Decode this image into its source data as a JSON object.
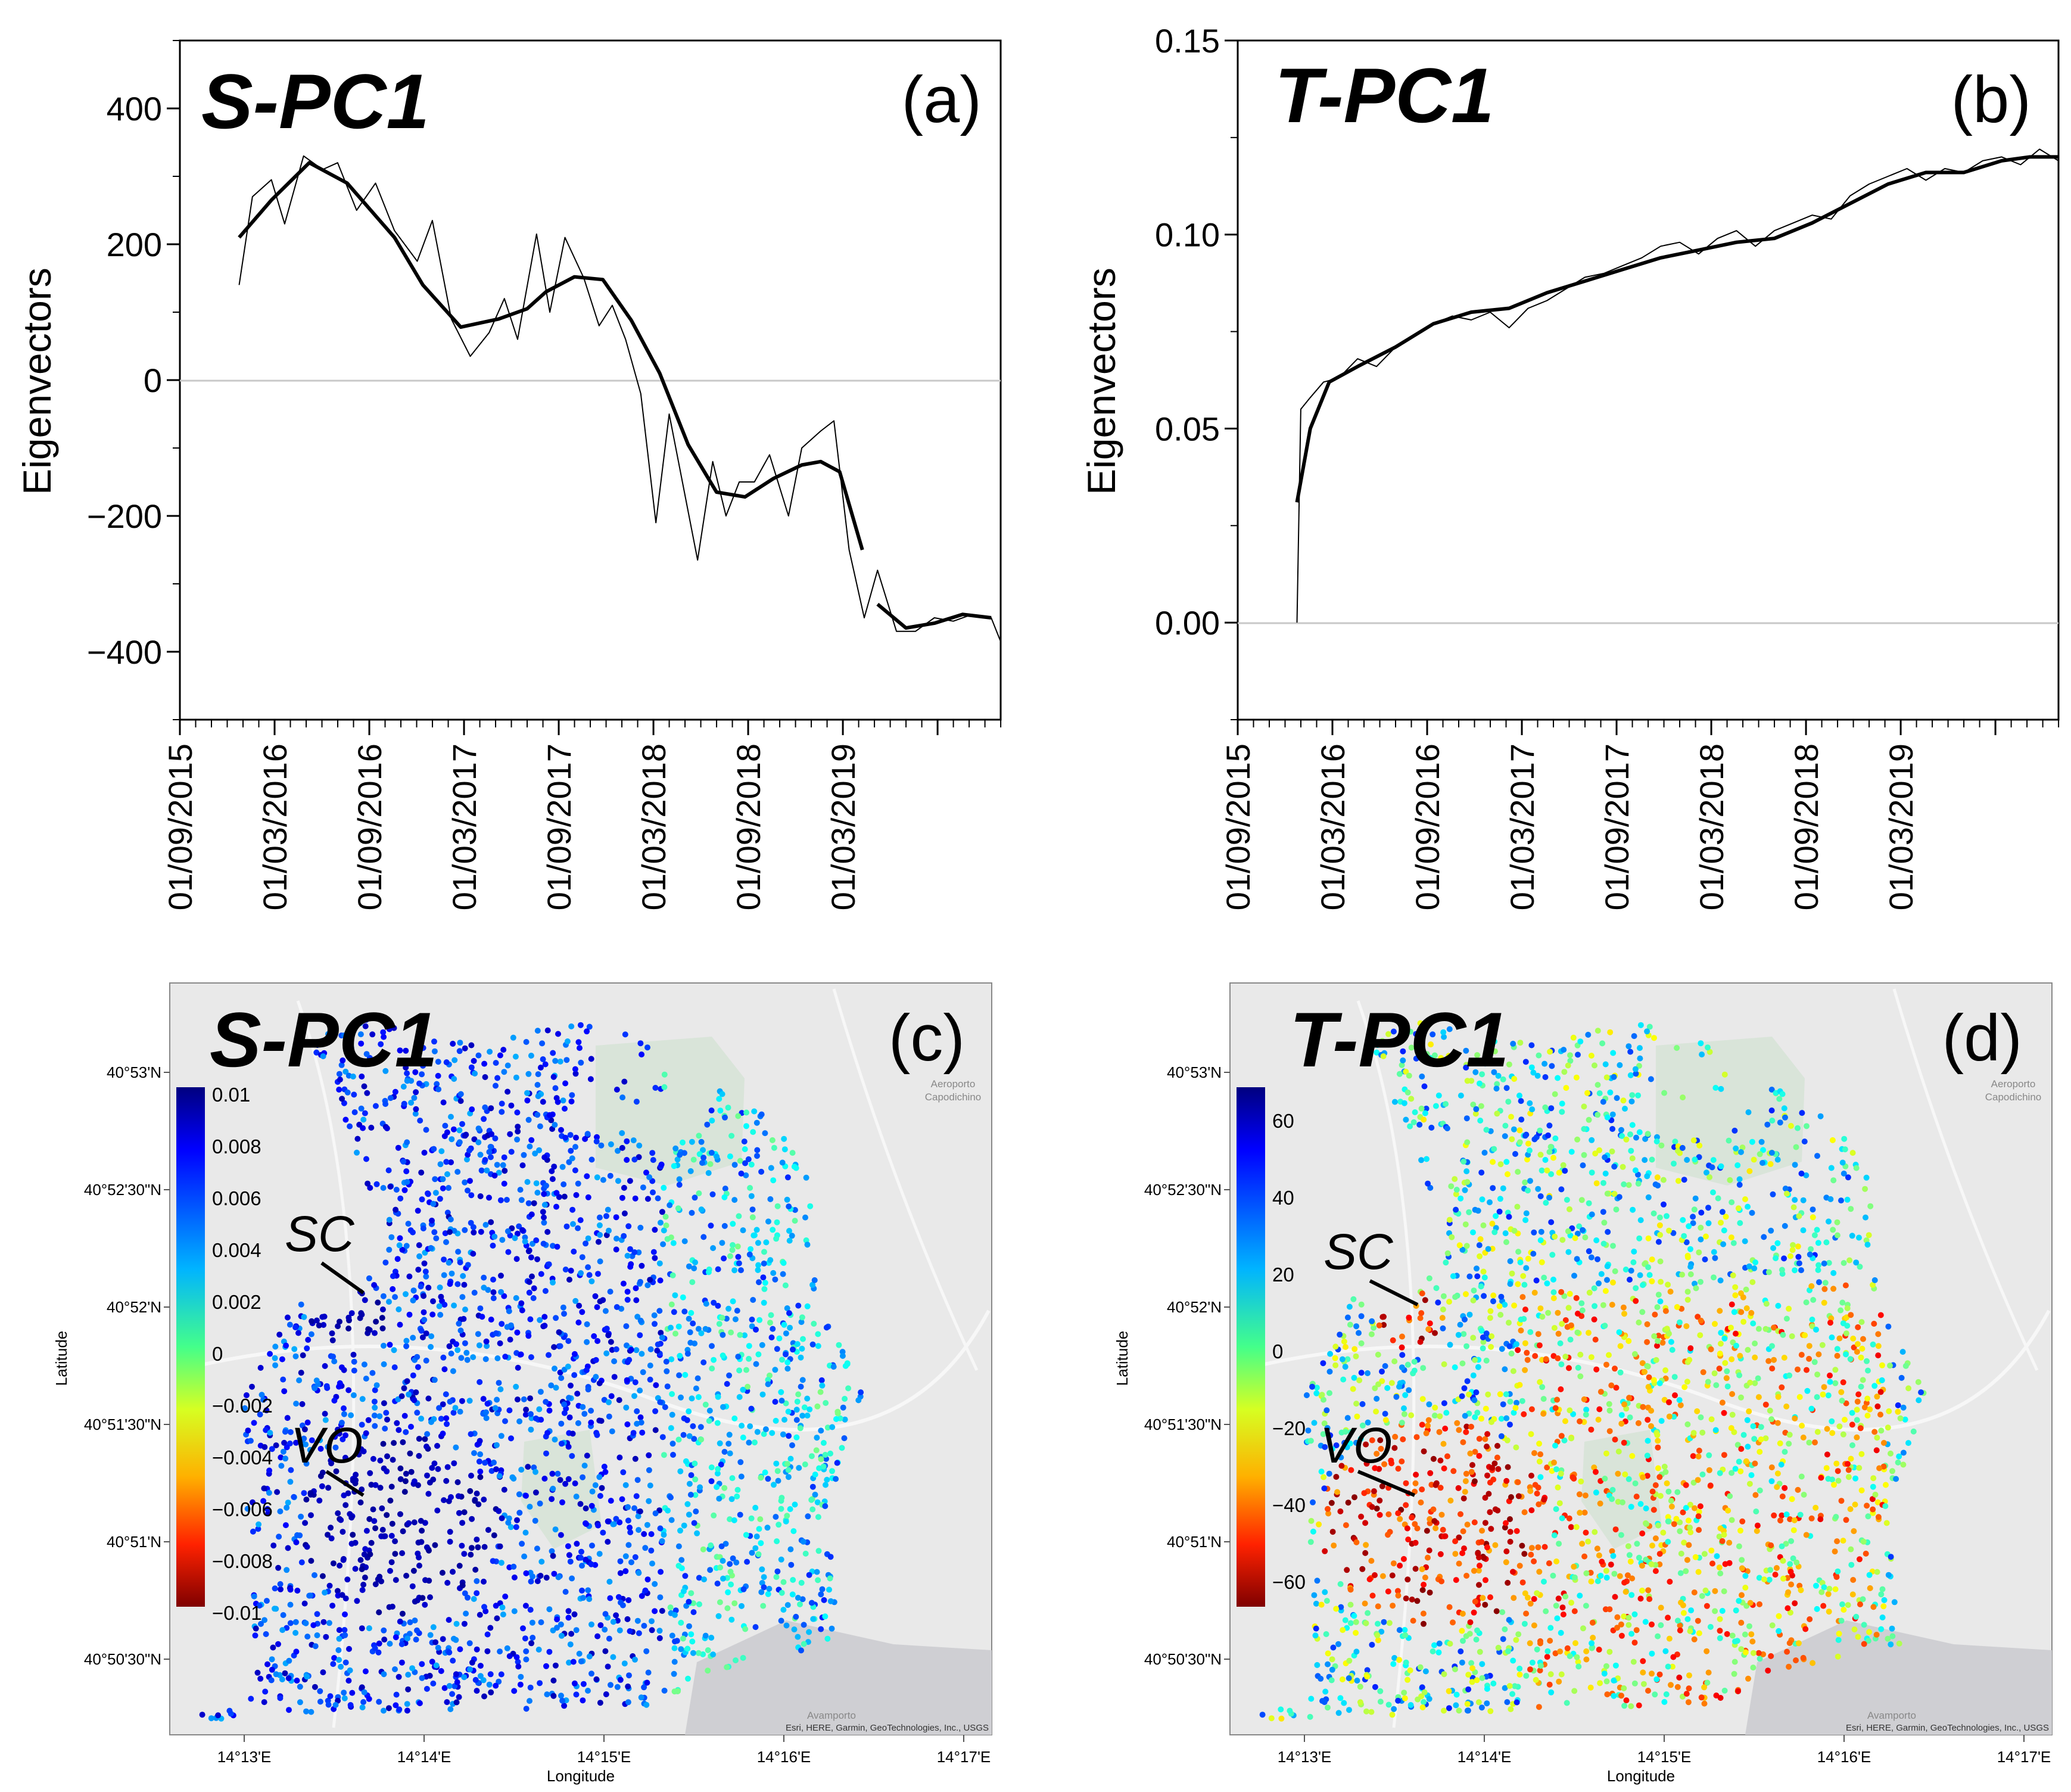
{
  "chart_data": [
    {
      "panel": "a",
      "type": "line",
      "title": "S-PC1",
      "panel_label": "(a)",
      "xlabel": "",
      "ylabel": "Eigenvectors",
      "ylim": [
        -500,
        500
      ],
      "yticks": [
        "400",
        "200",
        "0",
        "−200",
        "−400"
      ],
      "ytick_values": [
        400,
        200,
        0,
        -200,
        -400
      ],
      "xticks": [
        "01/09/2015",
        "01/03/2016",
        "01/09/2016",
        "01/03/2017",
        "01/09/2017",
        "01/03/2018",
        "01/09/2018",
        "01/03/2019"
      ],
      "series": [
        {
          "name": "smoothed",
          "x": [
            2015.98,
            2016.15,
            2016.35,
            2016.55,
            2016.8,
            2016.95,
            2017.15,
            2017.35,
            2017.5,
            2017.6,
            2017.75,
            2017.9,
            2018.05,
            2018.2,
            2018.35,
            2018.5,
            2018.65,
            2018.8,
            2018.95,
            2019.05,
            2019.15,
            2019.27
          ],
          "values": [
            210,
            265,
            320,
            290,
            210,
            140,
            78,
            90,
            105,
            130,
            152,
            148,
            88,
            10,
            -95,
            -165,
            -172,
            -145,
            -125,
            -120,
            -135,
            -250
          ]
        },
        {
          "name": "smoothed-tail",
          "x": [
            2019.35,
            2019.5,
            2019.65,
            2019.8,
            2019.95
          ],
          "values": [
            -330,
            -365,
            -358,
            -345,
            -350
          ]
        },
        {
          "name": "raw",
          "x": [
            2015.98,
            2016.05,
            2016.15,
            2016.22,
            2016.32,
            2016.42,
            2016.5,
            2016.6,
            2016.7,
            2016.8,
            2016.92,
            2017.0,
            2017.1,
            2017.2,
            2017.3,
            2017.38,
            2017.45,
            2017.55,
            2017.62,
            2017.7,
            2017.8,
            2017.88,
            2017.95,
            2018.02,
            2018.1,
            2018.18,
            2018.25,
            2018.32,
            2018.4,
            2018.48,
            2018.55,
            2018.62,
            2018.7,
            2018.78,
            2018.88,
            2018.95,
            2019.05,
            2019.12,
            2019.2,
            2019.28,
            2019.35,
            2019.45,
            2019.55,
            2019.65,
            2019.75,
            2019.85,
            2019.95,
            2020.0
          ],
          "values": [
            140,
            270,
            295,
            230,
            330,
            310,
            320,
            250,
            290,
            220,
            175,
            235,
            90,
            35,
            70,
            120,
            60,
            215,
            100,
            210,
            150,
            80,
            110,
            60,
            -20,
            -210,
            -50,
            -150,
            -265,
            -120,
            -200,
            -150,
            -150,
            -110,
            -200,
            -100,
            -75,
            -60,
            -250,
            -350,
            -280,
            -370,
            -370,
            -350,
            -355,
            -345,
            -350,
            -385
          ]
        }
      ]
    },
    {
      "panel": "b",
      "type": "line",
      "title": "T-PC1",
      "panel_label": "(b)",
      "xlabel": "",
      "ylabel": "Eigenvectors",
      "ylim": [
        -0.025,
        0.15
      ],
      "yticks": [
        "0.15",
        "0.10",
        "0.05",
        "0.00"
      ],
      "ytick_values": [
        0.15,
        0.1,
        0.05,
        0.0
      ],
      "xticks": [
        "01/09/2015",
        "01/03/2016",
        "01/09/2016",
        "01/03/2017",
        "01/09/2017",
        "01/03/2018",
        "01/09/2018",
        "01/03/2019"
      ],
      "series": [
        {
          "name": "smoothed",
          "x": [
            2015.98,
            2016.05,
            2016.15,
            2016.3,
            2016.5,
            2016.7,
            2016.9,
            2017.1,
            2017.3,
            2017.5,
            2017.7,
            2017.9,
            2018.1,
            2018.3,
            2018.5,
            2018.7,
            2018.9,
            2019.1,
            2019.3,
            2019.5,
            2019.7,
            2019.85,
            2020.0
          ],
          "values": [
            0.031,
            0.05,
            0.062,
            0.066,
            0.071,
            0.077,
            0.08,
            0.081,
            0.085,
            0.088,
            0.091,
            0.094,
            0.096,
            0.098,
            0.099,
            0.103,
            0.108,
            0.113,
            0.116,
            0.116,
            0.119,
            0.12,
            0.12
          ]
        },
        {
          "name": "raw",
          "x": [
            2015.98,
            2016.0,
            2016.05,
            2016.12,
            2016.2,
            2016.3,
            2016.4,
            2016.5,
            2016.6,
            2016.7,
            2016.8,
            2016.9,
            2017.0,
            2017.1,
            2017.2,
            2017.3,
            2017.4,
            2017.5,
            2017.6,
            2017.7,
            2017.8,
            2017.9,
            2018.0,
            2018.1,
            2018.2,
            2018.3,
            2018.4,
            2018.5,
            2018.6,
            2018.7,
            2018.8,
            2018.9,
            2019.0,
            2019.1,
            2019.2,
            2019.3,
            2019.4,
            2019.5,
            2019.6,
            2019.7,
            2019.8,
            2019.9,
            2020.0
          ],
          "values": [
            0.0,
            0.055,
            0.058,
            0.062,
            0.063,
            0.068,
            0.066,
            0.071,
            0.074,
            0.077,
            0.079,
            0.078,
            0.08,
            0.076,
            0.081,
            0.083,
            0.086,
            0.089,
            0.09,
            0.092,
            0.094,
            0.097,
            0.098,
            0.095,
            0.099,
            0.101,
            0.097,
            0.101,
            0.103,
            0.105,
            0.104,
            0.11,
            0.113,
            0.115,
            0.117,
            0.114,
            0.117,
            0.116,
            0.119,
            0.12,
            0.118,
            0.122,
            0.119
          ]
        }
      ]
    },
    {
      "panel": "c",
      "type": "scatter",
      "title": "S-PC1",
      "panel_label": "(c)",
      "xlabel": "Longitude",
      "ylabel": "Latitude",
      "xticks": [
        "14°13'E",
        "14°14'E",
        "14°15'E",
        "14°16'E",
        "14°17'E"
      ],
      "yticks": [
        "40°53'N",
        "40°52'30\"N",
        "40°52'N",
        "40°51'30\"N",
        "40°51'N",
        "40°50'30\"N"
      ],
      "colorbar": {
        "labels": [
          "0.01",
          "0.008",
          "0.006",
          "0.004",
          "0.002",
          "0",
          "−0.002",
          "−0.004",
          "−0.006",
          "−0.008",
          "−0.01"
        ],
        "range": [
          -0.01,
          0.01
        ]
      },
      "annotations": [
        "SC",
        "VO"
      ],
      "attribution": "Esri, HERE, Garmin, GeoTechnologies, Inc., USGS",
      "basemap_labels": [
        "Aeroporto",
        "Capodichino",
        "Avamporto"
      ]
    },
    {
      "panel": "d",
      "type": "scatter",
      "title": "T-PC1",
      "panel_label": "(d)",
      "xlabel": "Longitude",
      "ylabel": "Latitude",
      "xticks": [
        "14°13'E",
        "14°14'E",
        "14°15'E",
        "14°16'E",
        "14°17'E"
      ],
      "yticks": [
        "40°53'N",
        "40°52'30\"N",
        "40°52'N",
        "40°51'30\"N",
        "40°51'N",
        "40°50'30\"N"
      ],
      "colorbar": {
        "labels": [
          "60",
          "40",
          "20",
          "0",
          "−20",
          "−40",
          "−60"
        ],
        "range": [
          -70,
          70
        ]
      },
      "annotations": [
        "SC",
        "VO"
      ],
      "attribution": "Esri, HERE, Garmin, GeoTechnologies, Inc., USGS",
      "basemap_labels": [
        "Aeroporto",
        "Capodichino",
        "Avamporto"
      ]
    }
  ],
  "colors": {
    "axis": "#000000",
    "zero_line": "#c8c8c8",
    "map_bg": "#e9e9e9",
    "green_area": "#d9e4d9",
    "sea": "#cfcfd3"
  }
}
